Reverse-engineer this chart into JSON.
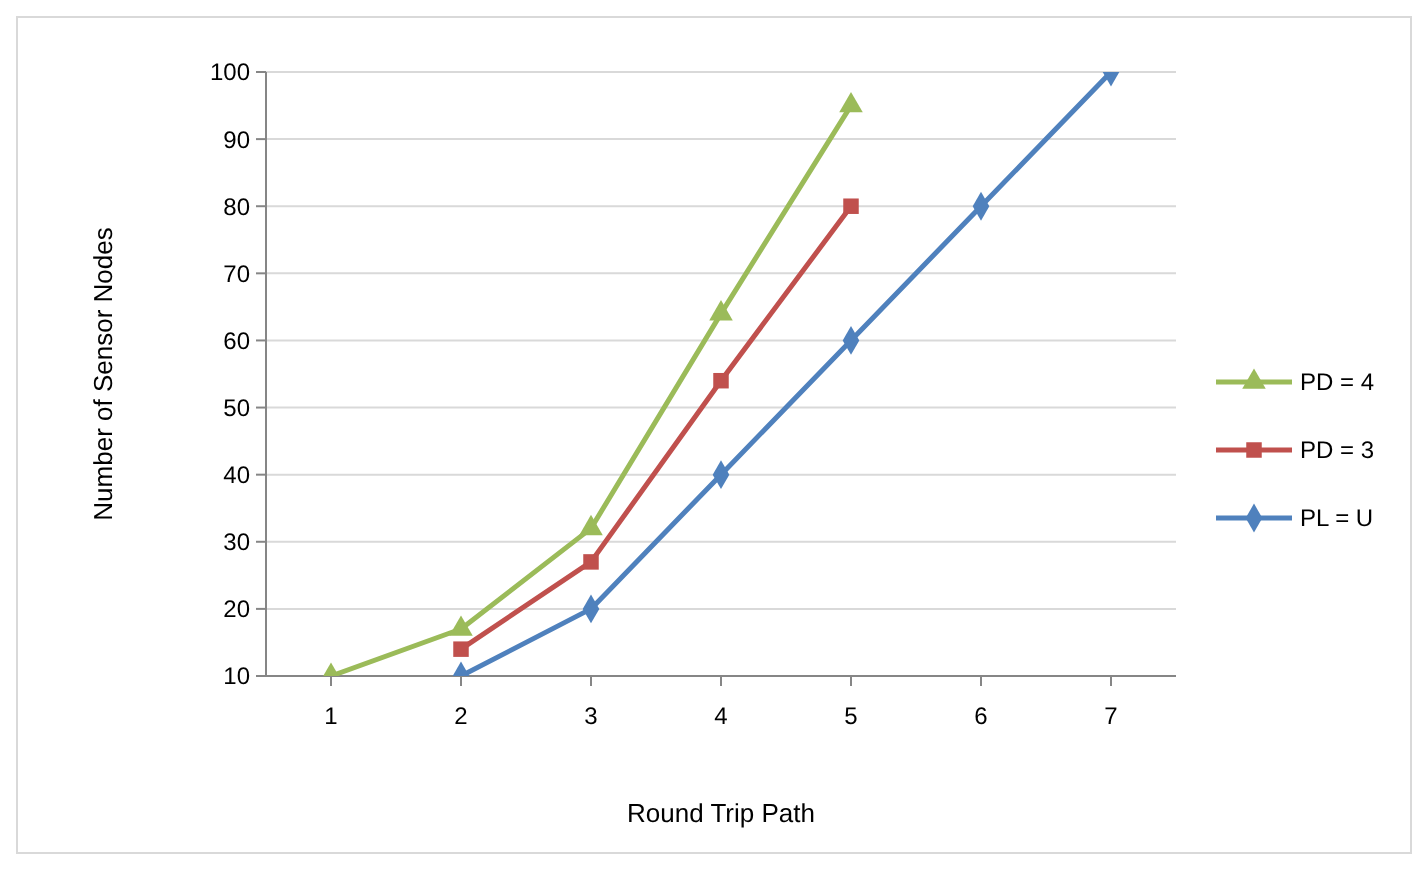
{
  "chart_data": {
    "type": "line",
    "xlabel": "Round Trip Path",
    "ylabel": "Number of Sensor Nodes",
    "xlim": [
      0.5,
      7.5
    ],
    "xticks": [
      1,
      2,
      3,
      4,
      5,
      6,
      7
    ],
    "ylim": [
      10,
      100
    ],
    "yticks": [
      10,
      20,
      30,
      40,
      50,
      60,
      70,
      80,
      90,
      100
    ],
    "grid": "y",
    "legend": "right",
    "series": [
      {
        "name": "PD = 4",
        "color": "#9bbb59",
        "marker": "triangle",
        "x": [
          1,
          2,
          3,
          4,
          5
        ],
        "values": [
          10,
          17,
          32,
          64,
          95
        ]
      },
      {
        "name": "PD = 3",
        "color": "#c0504d",
        "marker": "square",
        "x": [
          2,
          3,
          4,
          5
        ],
        "values": [
          14,
          27,
          54,
          80
        ]
      },
      {
        "name": "PL = U",
        "color": "#4f81bd",
        "marker": "diamond",
        "x": [
          2,
          3,
          4,
          5,
          6,
          7
        ],
        "values": [
          10,
          20,
          40,
          60,
          80,
          100
        ]
      }
    ]
  }
}
